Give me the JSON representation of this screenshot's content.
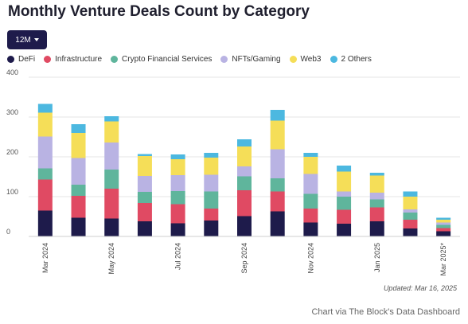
{
  "title": "Monthly Venture Deals Count by Category",
  "range_button": {
    "label": "12M"
  },
  "legend": [
    {
      "name": "DeFi",
      "color": "#1e1b4b"
    },
    {
      "name": "Infrastructure",
      "color": "#e04a63"
    },
    {
      "name": "Crypto Financial Services",
      "color": "#5fb59c"
    },
    {
      "name": "NFTs/Gaming",
      "color": "#b9b3e3"
    },
    {
      "name": "Web3",
      "color": "#f5de58"
    },
    {
      "name": "2 Others",
      "color": "#4cb8e0"
    }
  ],
  "updated": "Updated: Mar 16, 2025",
  "credit": "Chart via The Block's Data Dashboard",
  "chart_data": {
    "type": "bar",
    "stacked": true,
    "categories": [
      "Mar 2024",
      "Apr 2024",
      "May 2024",
      "Jun 2024",
      "Jul 2024",
      "Aug 2024",
      "Sep 2024",
      "Oct 2024",
      "Nov 2024",
      "Dec 2024",
      "Jan 2025",
      "Feb 2025",
      "Mar 2025*"
    ],
    "x_tick_labels": [
      "Mar 2024",
      "",
      "May 2024",
      "",
      "Jul 2024",
      "",
      "Sep 2024",
      "",
      "Nov 2024",
      "",
      "Jan 2025",
      "",
      "Mar 2025*"
    ],
    "y_ticks": [
      0,
      100,
      200,
      300,
      400
    ],
    "ylim": [
      0,
      400
    ],
    "grid": true,
    "series": [
      {
        "name": "DeFi",
        "color": "#1e1b4b",
        "values": [
          65,
          47,
          45,
          38,
          33,
          40,
          51,
          63,
          35,
          32,
          38,
          20,
          13
        ]
      },
      {
        "name": "Infrastructure",
        "color": "#e04a63",
        "values": [
          78,
          55,
          75,
          46,
          48,
          30,
          65,
          50,
          35,
          35,
          35,
          22,
          8
        ]
      },
      {
        "name": "Crypto Financial Services",
        "color": "#5fb59c",
        "values": [
          28,
          28,
          48,
          28,
          33,
          43,
          35,
          33,
          37,
          33,
          20,
          18,
          8
        ]
      },
      {
        "name": "NFTs/Gaming",
        "color": "#b9b3e3",
        "values": [
          80,
          67,
          68,
          40,
          40,
          42,
          25,
          73,
          50,
          13,
          17,
          8,
          6
        ]
      },
      {
        "name": "Web3",
        "color": "#f5de58",
        "values": [
          60,
          63,
          53,
          50,
          40,
          43,
          50,
          72,
          43,
          50,
          43,
          32,
          7
        ]
      },
      {
        "name": "2 Others",
        "color": "#4cb8e0",
        "values": [
          22,
          22,
          13,
          5,
          12,
          12,
          18,
          27,
          10,
          15,
          7,
          13,
          5
        ]
      }
    ]
  }
}
